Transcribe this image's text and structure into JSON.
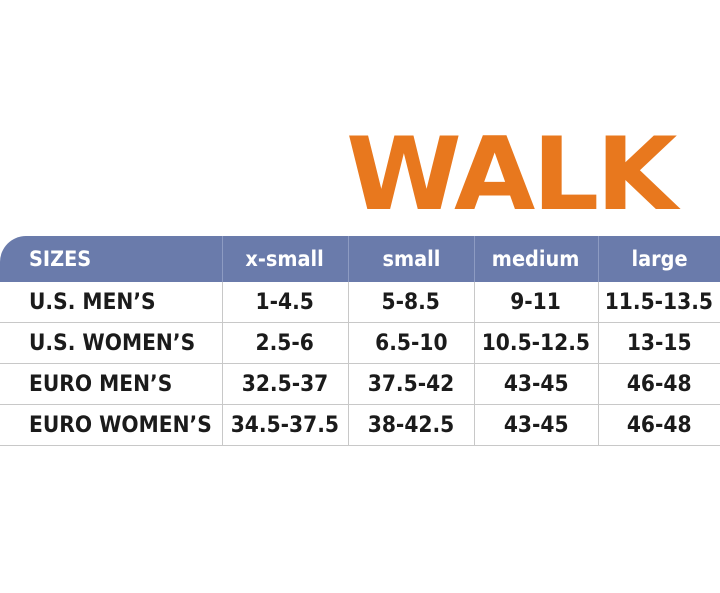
{
  "title": "WALK",
  "colors": {
    "title": "#e8781e",
    "header_background": "#6a7bab",
    "header_text": "#ffffff",
    "row_text": "#1b1b1b",
    "grid_lines": "#c8c8c8"
  },
  "table": {
    "headers": [
      "SIZES",
      "x-small",
      "small",
      "medium",
      "large"
    ],
    "rows": [
      [
        "U.S. MEN’S",
        "1-4.5",
        "5-8.5",
        "9-11",
        "11.5-13.5"
      ],
      [
        "U.S. WOMEN’S",
        "2.5-6",
        "6.5-10",
        "10.5-12.5",
        "13-15"
      ],
      [
        "EURO MEN’S",
        "32.5-37",
        "37.5-42",
        "43-45",
        "46-48"
      ],
      [
        "EURO WOMEN’S",
        "34.5-37.5",
        "38-42.5",
        "43-45",
        "46-48"
      ]
    ]
  }
}
